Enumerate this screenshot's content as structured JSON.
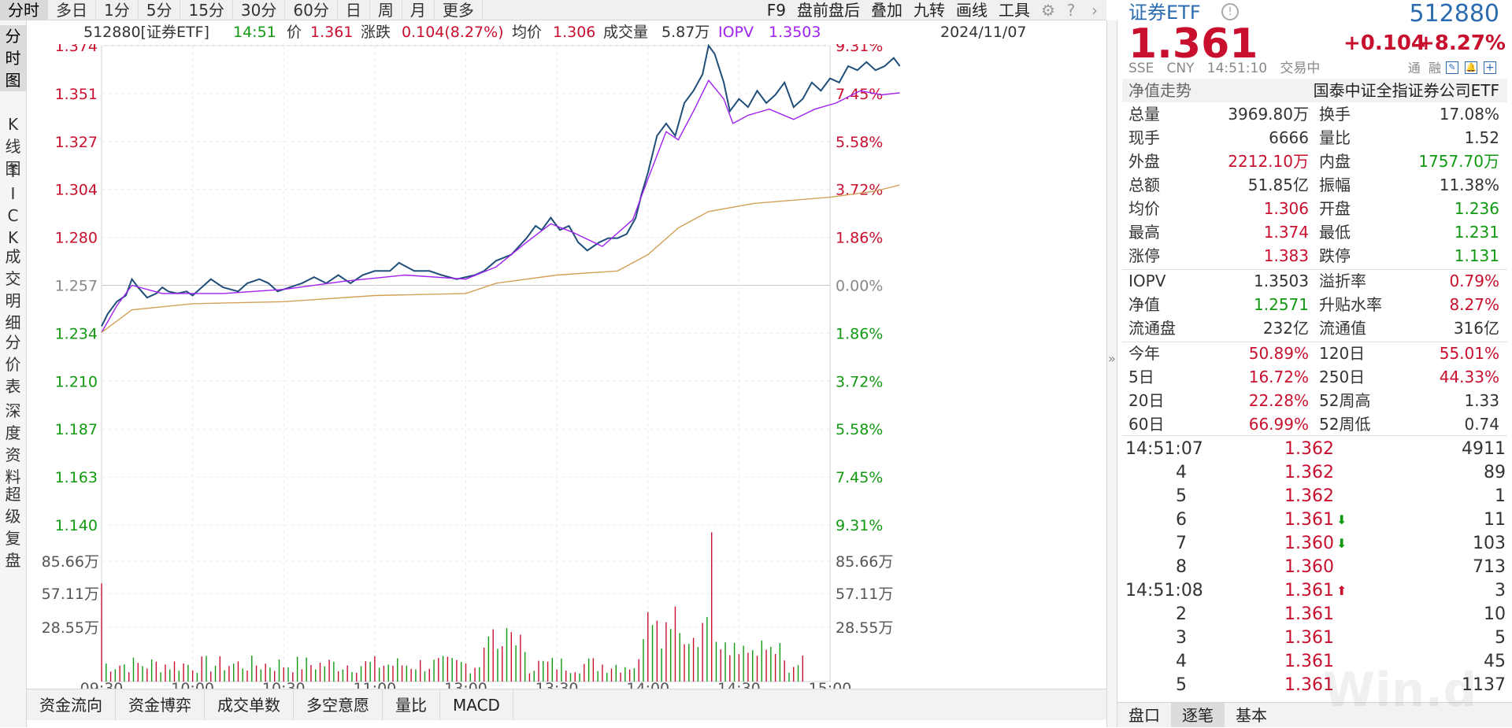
{
  "topbar": {
    "tabs": [
      "分时",
      "多日",
      "1分",
      "5分",
      "15分",
      "30分",
      "60分",
      "日",
      "周",
      "月",
      "更多"
    ],
    "active_tab": "分时",
    "tools": [
      "F9",
      "盘前盘后",
      "叠加",
      "九转",
      "画线",
      "工具"
    ]
  },
  "sidebar": {
    "tabs": [
      [
        "分",
        "时",
        "图"
      ],
      [
        "K",
        "线",
        "图"
      ],
      [
        "T",
        "I",
        "C",
        "K"
      ],
      [
        "成",
        "交",
        "明",
        "细"
      ],
      [
        "分",
        "价",
        "表"
      ],
      [
        "深",
        "度",
        "资",
        "料"
      ],
      [
        "超",
        "级",
        "复",
        "盘"
      ]
    ]
  },
  "info": {
    "code_name": "512880[证券ETF]",
    "time": "14:51",
    "price_label": "价",
    "price": "1.361",
    "change_label": "涨跌",
    "change": "0.104(8.27%)",
    "avg_label": "均价",
    "avg": "1.306",
    "vol_label": "成交量",
    "vol": "5.87万",
    "iopv_label": "IOPV",
    "iopv": "1.3503",
    "date": "2024/11/07"
  },
  "chart_data": {
    "type": "line",
    "title": "512880 证券ETF 分时",
    "prev_close": 1.257,
    "ylim": [
      1.14,
      1.374
    ],
    "price_ticks": [
      "1.374",
      "1.351",
      "1.327",
      "1.304",
      "1.280",
      "1.257",
      "1.234",
      "1.210",
      "1.187",
      "1.163",
      "1.140"
    ],
    "pct_ticks": [
      "9.31%",
      "7.45%",
      "5.58%",
      "3.72%",
      "1.86%",
      "0.00%",
      "1.86%",
      "3.72%",
      "5.58%",
      "7.45%",
      "9.31%"
    ],
    "x_ticks": [
      "09:30",
      "10:00",
      "10:30",
      "11:00",
      "13:00",
      "13:30",
      "14:00",
      "14:30",
      "15:00"
    ],
    "vol_ticks": [
      "85.66万",
      "57.11万",
      "28.55万"
    ],
    "vol_max": 114.2,
    "series": [
      {
        "name": "价格",
        "color": "#1f4e79",
        "points": [
          [
            0,
            1.237
          ],
          [
            2,
            1.243
          ],
          [
            5,
            1.249
          ],
          [
            8,
            1.252
          ],
          [
            10,
            1.26
          ],
          [
            12,
            1.256
          ],
          [
            15,
            1.251
          ],
          [
            18,
            1.253
          ],
          [
            20,
            1.256
          ],
          [
            22,
            1.254
          ],
          [
            25,
            1.253
          ],
          [
            28,
            1.254
          ],
          [
            30,
            1.252
          ],
          [
            33,
            1.256
          ],
          [
            36,
            1.26
          ],
          [
            40,
            1.256
          ],
          [
            45,
            1.254
          ],
          [
            48,
            1.258
          ],
          [
            52,
            1.26
          ],
          [
            55,
            1.258
          ],
          [
            58,
            1.254
          ],
          [
            62,
            1.256
          ],
          [
            66,
            1.258
          ],
          [
            70,
            1.261
          ],
          [
            74,
            1.258
          ],
          [
            78,
            1.262
          ],
          [
            82,
            1.258
          ],
          [
            86,
            1.262
          ],
          [
            90,
            1.264
          ],
          [
            95,
            1.264
          ],
          [
            98,
            1.268
          ],
          [
            103,
            1.264
          ],
          [
            108,
            1.264
          ],
          [
            112,
            1.262
          ],
          [
            117,
            1.26
          ],
          [
            120,
            1.261
          ],
          [
            123,
            1.262
          ],
          [
            126,
            1.264
          ],
          [
            130,
            1.269
          ],
          [
            135,
            1.272
          ],
          [
            140,
            1.28
          ],
          [
            143,
            1.286
          ],
          [
            145,
            1.284
          ],
          [
            148,
            1.29
          ],
          [
            151,
            1.284
          ],
          [
            154,
            1.286
          ],
          [
            157,
            1.278
          ],
          [
            160,
            1.274
          ],
          [
            164,
            1.278
          ],
          [
            167,
            1.28
          ],
          [
            170,
            1.28
          ],
          [
            173,
            1.282
          ],
          [
            176,
            1.29
          ],
          [
            178,
            1.302
          ],
          [
            180,
            1.312
          ],
          [
            183,
            1.33
          ],
          [
            186,
            1.336
          ],
          [
            189,
            1.33
          ],
          [
            192,
            1.346
          ],
          [
            195,
            1.352
          ],
          [
            198,
            1.36
          ],
          [
            200,
            1.374
          ],
          [
            202,
            1.37
          ],
          [
            205,
            1.356
          ],
          [
            207,
            1.342
          ],
          [
            210,
            1.348
          ],
          [
            213,
            1.344
          ],
          [
            216,
            1.352
          ],
          [
            219,
            1.346
          ],
          [
            222,
            1.35
          ],
          [
            225,
            1.356
          ],
          [
            228,
            1.344
          ],
          [
            231,
            1.348
          ],
          [
            234,
            1.356
          ],
          [
            237,
            1.352
          ],
          [
            240,
            1.358
          ],
          [
            243,
            1.356
          ],
          [
            246,
            1.364
          ],
          [
            249,
            1.362
          ],
          [
            252,
            1.366
          ],
          [
            255,
            1.362
          ],
          [
            258,
            1.364
          ],
          [
            261,
            1.368
          ],
          [
            263,
            1.364
          ]
        ]
      },
      {
        "name": "IOPV",
        "color": "#a020f0",
        "points": [
          [
            0,
            1.234
          ],
          [
            5,
            1.247
          ],
          [
            10,
            1.257
          ],
          [
            20,
            1.253
          ],
          [
            40,
            1.253
          ],
          [
            60,
            1.255
          ],
          [
            80,
            1.259
          ],
          [
            100,
            1.262
          ],
          [
            120,
            1.26
          ],
          [
            130,
            1.266
          ],
          [
            140,
            1.278
          ],
          [
            148,
            1.287
          ],
          [
            155,
            1.283
          ],
          [
            165,
            1.276
          ],
          [
            175,
            1.289
          ],
          [
            180,
            1.309
          ],
          [
            186,
            1.332
          ],
          [
            190,
            1.328
          ],
          [
            195,
            1.342
          ],
          [
            200,
            1.357
          ],
          [
            205,
            1.348
          ],
          [
            208,
            1.336
          ],
          [
            213,
            1.34
          ],
          [
            220,
            1.343
          ],
          [
            228,
            1.338
          ],
          [
            235,
            1.343
          ],
          [
            242,
            1.346
          ],
          [
            250,
            1.352
          ],
          [
            257,
            1.35
          ],
          [
            263,
            1.351
          ]
        ]
      },
      {
        "name": "均价",
        "color": "#d2a056",
        "points": [
          [
            0,
            1.234
          ],
          [
            10,
            1.245
          ],
          [
            30,
            1.248
          ],
          [
            60,
            1.249
          ],
          [
            90,
            1.252
          ],
          [
            120,
            1.253
          ],
          [
            130,
            1.258
          ],
          [
            150,
            1.262
          ],
          [
            170,
            1.264
          ],
          [
            180,
            1.272
          ],
          [
            190,
            1.285
          ],
          [
            200,
            1.293
          ],
          [
            215,
            1.297
          ],
          [
            240,
            1.3
          ],
          [
            255,
            1.303
          ],
          [
            263,
            1.306
          ]
        ]
      }
    ]
  },
  "bottom_tabs": [
    "资金流向",
    "资金博弈",
    "成交单数",
    "多空意愿",
    "量比",
    "MACD"
  ],
  "panel": {
    "name": "证券ETF",
    "code": "512880",
    "price": "1.361",
    "change": "+0.104",
    "change_pct": "+8.27%",
    "meta": [
      "SSE",
      "CNY",
      "14:51:10",
      "交易中"
    ],
    "meta_right": [
      "通",
      "融"
    ],
    "nav_label": "净值走势",
    "fund_name": "国泰中证全指证券公司ETF",
    "rows": [
      {
        "l1": "总量",
        "v1": "3969.80万",
        "c1": "dark",
        "l2": "换手",
        "v2": "17.08%",
        "c2": "dark"
      },
      {
        "l1": "现手",
        "v1": "6666",
        "c1": "dark",
        "l2": "量比",
        "v2": "1.52",
        "c2": "dark"
      },
      {
        "l1": "外盘",
        "v1": "2212.10万",
        "c1": "red",
        "l2": "内盘",
        "v2": "1757.70万",
        "c2": "green"
      },
      {
        "l1": "总额",
        "v1": "51.85亿",
        "c1": "dark",
        "l2": "振幅",
        "v2": "11.38%",
        "c2": "dark"
      },
      {
        "l1": "均价",
        "v1": "1.306",
        "c1": "red",
        "l2": "开盘",
        "v2": "1.236",
        "c2": "green"
      },
      {
        "l1": "最高",
        "v1": "1.374",
        "c1": "red",
        "l2": "最低",
        "v2": "1.231",
        "c2": "green"
      },
      {
        "l1": "涨停",
        "v1": "1.383",
        "c1": "red",
        "l2": "跌停",
        "v2": "1.131",
        "c2": "green"
      },
      {
        "l1": "IOPV",
        "v1": "1.3503",
        "c1": "dark",
        "l2": "溢折率",
        "v2": "0.79%",
        "c2": "red"
      },
      {
        "l1": "净值",
        "v1": "1.2571",
        "c1": "green",
        "l2": "升贴水率",
        "v2": "8.27%",
        "c2": "red"
      },
      {
        "l1": "流通盘",
        "v1": "232亿",
        "c1": "dark",
        "l2": "流通值",
        "v2": "316亿",
        "c2": "dark"
      },
      {
        "l1": "今年",
        "v1": "50.89%",
        "c1": "red",
        "l2": "120日",
        "v2": "55.01%",
        "c2": "red"
      },
      {
        "l1": "5日",
        "v1": "16.72%",
        "c1": "red",
        "l2": "250日",
        "v2": "44.33%",
        "c2": "red"
      },
      {
        "l1": "20日",
        "v1": "22.28%",
        "c1": "red",
        "l2": "52周高",
        "v2": "1.33",
        "c2": "dark"
      },
      {
        "l1": "60日",
        "v1": "66.99%",
        "c1": "red",
        "l2": "52周低",
        "v2": "0.74",
        "c2": "dark"
      }
    ],
    "ticks": [
      {
        "time": "14:51:07",
        "price": "1.362",
        "flag": "",
        "vol": "4911"
      },
      {
        "time": "4",
        "price": "1.362",
        "flag": "",
        "vol": "89"
      },
      {
        "time": "5",
        "price": "1.362",
        "flag": "",
        "vol": "1"
      },
      {
        "time": "6",
        "price": "1.361",
        "flag": "down",
        "vol": "11"
      },
      {
        "time": "7",
        "price": "1.360",
        "flag": "down",
        "vol": "103"
      },
      {
        "time": "8",
        "price": "1.360",
        "flag": "",
        "vol": "713"
      },
      {
        "time": "14:51:08",
        "price": "1.361",
        "flag": "up",
        "vol": "3"
      },
      {
        "time": "2",
        "price": "1.361",
        "flag": "",
        "vol": "10"
      },
      {
        "time": "3",
        "price": "1.361",
        "flag": "",
        "vol": "5"
      },
      {
        "time": "4",
        "price": "1.361",
        "flag": "",
        "vol": "45"
      },
      {
        "time": "5",
        "price": "1.361",
        "flag": "",
        "vol": "1137"
      }
    ],
    "tabs": [
      "盘口",
      "逐笔",
      "基本"
    ],
    "active_tab": "逐笔"
  },
  "watermark": "Win.d",
  "colors": {
    "red": "#c8102e",
    "green": "#119911",
    "purple": "#a020f0",
    "price_line": "#1f4e79",
    "avg_line": "#d2a056"
  }
}
